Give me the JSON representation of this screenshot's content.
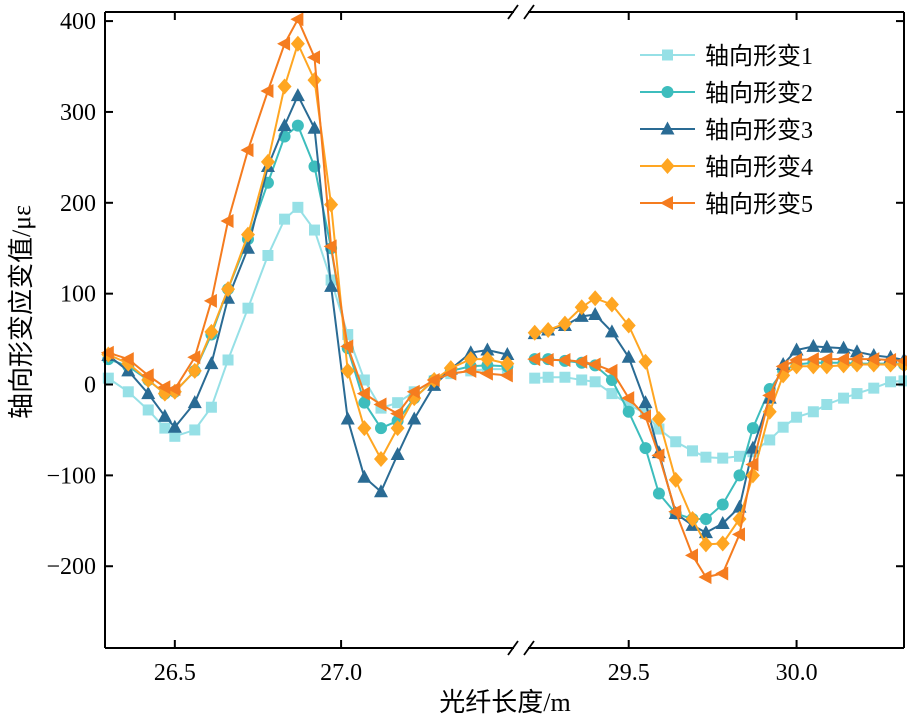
{
  "chart_data": {
    "type": "line",
    "xlabel": "光纤长度/m",
    "ylabel": "轴向形变应变值/με",
    "ylim": [
      -290,
      410
    ],
    "yticks": [
      "400",
      "300",
      "200",
      "100",
      "0",
      "−100",
      "−200"
    ],
    "ytick_values": [
      400,
      300,
      200,
      100,
      0,
      -100,
      -200
    ],
    "x_break": true,
    "panels": [
      {
        "xlim": [
          26.29,
          27.52
        ],
        "xticks": [
          "26.5",
          "27.0"
        ],
        "xtick_values": [
          26.5,
          27.0
        ]
      },
      {
        "xlim": [
          29.2,
          30.32
        ],
        "xticks": [
          "29.5",
          "30.0"
        ],
        "xtick_values": [
          29.5,
          30.0
        ]
      }
    ],
    "legend_position": "top-right",
    "series": [
      {
        "name": "轴向形变1",
        "color": "#96e0e6",
        "marker": "square",
        "segments": [
          [
            [
              26.3,
              7
            ],
            [
              26.36,
              -8
            ],
            [
              26.42,
              -28
            ],
            [
              26.47,
              -48
            ],
            [
              26.5,
              -57
            ],
            [
              26.56,
              -50
            ],
            [
              26.61,
              -25
            ],
            [
              26.66,
              27
            ],
            [
              26.72,
              84
            ],
            [
              26.78,
              142
            ],
            [
              26.83,
              182
            ],
            [
              26.87,
              195
            ],
            [
              26.92,
              170
            ],
            [
              26.97,
              115
            ],
            [
              27.02,
              55
            ],
            [
              27.07,
              5
            ],
            [
              27.12,
              -26
            ],
            [
              27.17,
              -20
            ],
            [
              27.22,
              -8
            ],
            [
              27.28,
              4
            ],
            [
              27.33,
              12
            ],
            [
              27.39,
              15
            ],
            [
              27.44,
              17
            ],
            [
              27.5,
              17
            ]
          ],
          [
            [
              29.22,
              7
            ],
            [
              29.26,
              8
            ],
            [
              29.31,
              8
            ],
            [
              29.36,
              5
            ],
            [
              29.4,
              3
            ],
            [
              29.45,
              -10
            ],
            [
              29.5,
              -22
            ],
            [
              29.55,
              -32
            ],
            [
              29.59,
              -49
            ],
            [
              29.64,
              -63
            ],
            [
              29.69,
              -73
            ],
            [
              29.73,
              -80
            ],
            [
              29.78,
              -81
            ],
            [
              29.83,
              -79
            ],
            [
              29.87,
              -74
            ],
            [
              29.92,
              -61
            ],
            [
              29.96,
              -47
            ],
            [
              30.0,
              -36
            ],
            [
              30.05,
              -30
            ],
            [
              30.09,
              -22
            ],
            [
              30.14,
              -15
            ],
            [
              30.18,
              -10
            ],
            [
              30.23,
              -4
            ],
            [
              30.28,
              3
            ],
            [
              30.32,
              4
            ]
          ]
        ]
      },
      {
        "name": "轴向形变2",
        "color": "#3dbdbd",
        "marker": "circle",
        "segments": [
          [
            [
              26.3,
              28
            ],
            [
              26.36,
              20
            ],
            [
              26.42,
              5
            ],
            [
              26.47,
              -10
            ],
            [
              26.5,
              -8
            ],
            [
              26.56,
              15
            ],
            [
              26.61,
              55
            ],
            [
              26.66,
              105
            ],
            [
              26.72,
              160
            ],
            [
              26.78,
              222
            ],
            [
              26.83,
              273
            ],
            [
              26.87,
              285
            ],
            [
              26.92,
              240
            ],
            [
              26.97,
              150
            ],
            [
              27.02,
              40
            ],
            [
              27.07,
              -20
            ],
            [
              27.12,
              -48
            ],
            [
              27.17,
              -40
            ],
            [
              27.22,
              -15
            ],
            [
              27.28,
              5
            ],
            [
              27.33,
              15
            ],
            [
              27.39,
              20
            ],
            [
              27.44,
              21
            ],
            [
              27.5,
              20
            ]
          ],
          [
            [
              29.22,
              28
            ],
            [
              29.26,
              28
            ],
            [
              29.31,
              26
            ],
            [
              29.36,
              24
            ],
            [
              29.4,
              21
            ],
            [
              29.45,
              5
            ],
            [
              29.5,
              -30
            ],
            [
              29.55,
              -70
            ],
            [
              29.59,
              -120
            ],
            [
              29.64,
              -142
            ],
            [
              29.69,
              -148
            ],
            [
              29.73,
              -148
            ],
            [
              29.78,
              -132
            ],
            [
              29.83,
              -100
            ],
            [
              29.87,
              -48
            ],
            [
              29.92,
              -5
            ],
            [
              29.96,
              15
            ],
            [
              30.0,
              22
            ],
            [
              30.05,
              24
            ],
            [
              30.09,
              24
            ],
            [
              30.14,
              24
            ],
            [
              30.18,
              23
            ],
            [
              30.23,
              23
            ],
            [
              30.28,
              23
            ],
            [
              30.32,
              22
            ]
          ]
        ]
      },
      {
        "name": "轴向形变3",
        "color": "#2a6b94",
        "marker": "triangle-up",
        "segments": [
          [
            [
              26.3,
              32
            ],
            [
              26.36,
              15
            ],
            [
              26.42,
              -10
            ],
            [
              26.47,
              -35
            ],
            [
              26.5,
              -47
            ],
            [
              26.56,
              -20
            ],
            [
              26.61,
              23
            ],
            [
              26.66,
              95
            ],
            [
              26.72,
              150
            ],
            [
              26.78,
              240
            ],
            [
              26.83,
              285
            ],
            [
              26.87,
              318
            ],
            [
              26.92,
              282
            ],
            [
              26.97,
              108
            ],
            [
              27.02,
              -38
            ],
            [
              27.07,
              -102
            ],
            [
              27.12,
              -118
            ],
            [
              27.17,
              -77
            ],
            [
              27.22,
              -38
            ],
            [
              27.28,
              -1
            ],
            [
              27.33,
              17
            ],
            [
              27.39,
              35
            ],
            [
              27.44,
              38
            ],
            [
              27.5,
              33
            ]
          ],
          [
            [
              29.22,
              56
            ],
            [
              29.26,
              60
            ],
            [
              29.31,
              65
            ],
            [
              29.36,
              75
            ],
            [
              29.4,
              77
            ],
            [
              29.45,
              58
            ],
            [
              29.5,
              30
            ],
            [
              29.55,
              -20
            ],
            [
              29.59,
              -75
            ],
            [
              29.64,
              -142
            ],
            [
              29.69,
              -155
            ],
            [
              29.73,
              -163
            ],
            [
              29.78,
              -153
            ],
            [
              29.83,
              -135
            ],
            [
              29.87,
              -70
            ],
            [
              29.92,
              -15
            ],
            [
              29.96,
              22
            ],
            [
              30.0,
              38
            ],
            [
              30.05,
              42
            ],
            [
              30.09,
              41
            ],
            [
              30.14,
              40
            ],
            [
              30.18,
              36
            ],
            [
              30.23,
              32
            ],
            [
              30.28,
              30
            ],
            [
              30.32,
              27
            ]
          ]
        ]
      },
      {
        "name": "轴向形变4",
        "color": "#ffa622",
        "marker": "diamond",
        "segments": [
          [
            [
              26.3,
              33
            ],
            [
              26.36,
              23
            ],
            [
              26.42,
              5
            ],
            [
              26.47,
              -10
            ],
            [
              26.5,
              -8
            ],
            [
              26.56,
              15
            ],
            [
              26.61,
              58
            ],
            [
              26.66,
              105
            ],
            [
              26.72,
              165
            ],
            [
              26.78,
              245
            ],
            [
              26.83,
              328
            ],
            [
              26.87,
              375
            ],
            [
              26.92,
              335
            ],
            [
              26.97,
              198
            ],
            [
              27.02,
              15
            ],
            [
              27.07,
              -48
            ],
            [
              27.12,
              -82
            ],
            [
              27.17,
              -48
            ],
            [
              27.22,
              -15
            ],
            [
              27.28,
              5
            ],
            [
              27.33,
              18
            ],
            [
              27.39,
              28
            ],
            [
              27.44,
              28
            ],
            [
              27.5,
              23
            ]
          ],
          [
            [
              29.22,
              57
            ],
            [
              29.26,
              60
            ],
            [
              29.31,
              67
            ],
            [
              29.36,
              85
            ],
            [
              29.4,
              95
            ],
            [
              29.45,
              88
            ],
            [
              29.5,
              65
            ],
            [
              29.55,
              25
            ],
            [
              29.59,
              -38
            ],
            [
              29.64,
              -105
            ],
            [
              29.69,
              -148
            ],
            [
              29.73,
              -176
            ],
            [
              29.78,
              -175
            ],
            [
              29.83,
              -148
            ],
            [
              29.87,
              -100
            ],
            [
              29.92,
              -30
            ],
            [
              29.96,
              10
            ],
            [
              30.0,
              20
            ],
            [
              30.05,
              20
            ],
            [
              30.09,
              20
            ],
            [
              30.14,
              21
            ],
            [
              30.18,
              22
            ],
            [
              30.23,
              22
            ],
            [
              30.28,
              22
            ],
            [
              30.32,
              22
            ]
          ]
        ]
      },
      {
        "name": "轴向形变5",
        "color": "#f57c1f",
        "marker": "triangle-left",
        "segments": [
          [
            [
              26.3,
              35
            ],
            [
              26.36,
              28
            ],
            [
              26.42,
              10
            ],
            [
              26.47,
              -3
            ],
            [
              26.5,
              -5
            ],
            [
              26.56,
              30
            ],
            [
              26.61,
              92
            ],
            [
              26.66,
              180
            ],
            [
              26.72,
              258
            ],
            [
              26.78,
              323
            ],
            [
              26.83,
              375
            ],
            [
              26.87,
              402
            ],
            [
              26.92,
              360
            ],
            [
              26.97,
              152
            ],
            [
              27.02,
              42
            ],
            [
              27.07,
              -10
            ],
            [
              27.12,
              -22
            ],
            [
              27.17,
              -32
            ],
            [
              27.22,
              -8
            ],
            [
              27.28,
              5
            ],
            [
              27.33,
              12
            ],
            [
              27.39,
              15
            ],
            [
              27.44,
              12
            ],
            [
              27.5,
              10
            ]
          ],
          [
            [
              29.22,
              28
            ],
            [
              29.26,
              27
            ],
            [
              29.31,
              27
            ],
            [
              29.36,
              25
            ],
            [
              29.4,
              22
            ],
            [
              29.45,
              15
            ],
            [
              29.5,
              -15
            ],
            [
              29.55,
              -35
            ],
            [
              29.59,
              -78
            ],
            [
              29.64,
              -140
            ],
            [
              29.69,
              -188
            ],
            [
              29.73,
              -212
            ],
            [
              29.78,
              -208
            ],
            [
              29.83,
              -165
            ],
            [
              29.87,
              -88
            ],
            [
              29.92,
              -12
            ],
            [
              29.96,
              20
            ],
            [
              30.0,
              27
            ],
            [
              30.05,
              28
            ],
            [
              30.09,
              28
            ],
            [
              30.14,
              28
            ],
            [
              30.18,
              28
            ],
            [
              30.23,
              28
            ],
            [
              30.28,
              27
            ],
            [
              30.32,
              26
            ]
          ]
        ]
      }
    ]
  }
}
